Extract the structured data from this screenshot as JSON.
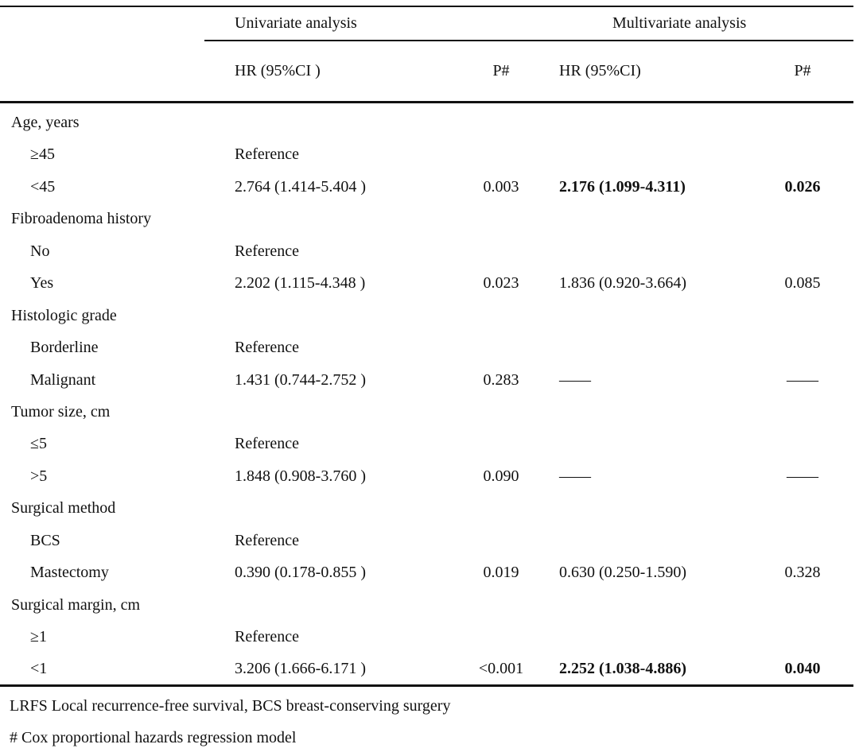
{
  "table": {
    "group_headers": {
      "univariate": "Univariate analysis",
      "multivariate": "Multivariate analysis"
    },
    "col_headers": {
      "uni_hr": "HR (95%CI )",
      "uni_p": "P#",
      "multi_hr": "HR (95%CI)",
      "multi_p": "P#"
    },
    "rows": [
      {
        "label": "Age, years",
        "type": "category"
      },
      {
        "label": "≥45",
        "type": "level",
        "uni_hr": "Reference"
      },
      {
        "label": "<45",
        "type": "level",
        "uni_hr": "2.764 (1.414-5.404 )",
        "uni_p": "0.003",
        "multi_hr": "2.176 (1.099-4.311)",
        "multi_p": "0.026",
        "multi_bold": true
      },
      {
        "label": "Fibroadenoma history",
        "type": "category"
      },
      {
        "label": "No",
        "type": "level",
        "uni_hr": "Reference"
      },
      {
        "label": "Yes",
        "type": "level",
        "uni_hr": "2.202 (1.115-4.348 )",
        "uni_p": "0.023",
        "multi_hr": "1.836 (0.920-3.664)",
        "multi_p": "0.085"
      },
      {
        "label": "Histologic grade",
        "type": "category"
      },
      {
        "label": "Borderline",
        "type": "level",
        "uni_hr": "Reference"
      },
      {
        "label": "Malignant",
        "type": "level",
        "uni_hr": "1.431 (0.744-2.752 )",
        "uni_p": "0.283",
        "multi_hr": "——",
        "multi_p": "——"
      },
      {
        "label": "Tumor size, cm",
        "type": "category"
      },
      {
        "label": "≤5",
        "type": "level",
        "uni_hr": "Reference"
      },
      {
        "label": ">5",
        "type": "level",
        "uni_hr": "1.848 (0.908-3.760 )",
        "uni_p": "0.090",
        "multi_hr": "——",
        "multi_p": "——"
      },
      {
        "label": "Surgical method",
        "type": "category"
      },
      {
        "label": "BCS",
        "type": "level",
        "uni_hr": "Reference"
      },
      {
        "label": "Mastectomy",
        "type": "level",
        "uni_hr": "0.390 (0.178-0.855 )",
        "uni_p": "0.019",
        "multi_hr": "0.630 (0.250-1.590)",
        "multi_p": "0.328"
      },
      {
        "label": "Surgical margin, cm",
        "type": "category"
      },
      {
        "label": "≥1",
        "type": "level",
        "uni_hr": "Reference"
      },
      {
        "label": "<1",
        "type": "level",
        "uni_hr": "3.206 (1.666-6.171 )",
        "uni_p": "<0.001",
        "multi_hr": "2.252 (1.038-4.886)",
        "multi_p": "0.040",
        "multi_bold": true
      }
    ],
    "footnotes": {
      "abbreviations": "LRFS Local recurrence-free survival, BCS breast-conserving surgery",
      "model": "# Cox proportional hazards regression model"
    },
    "colors": {
      "text": "#111111",
      "background": "#ffffff",
      "rule": "#111111"
    }
  }
}
